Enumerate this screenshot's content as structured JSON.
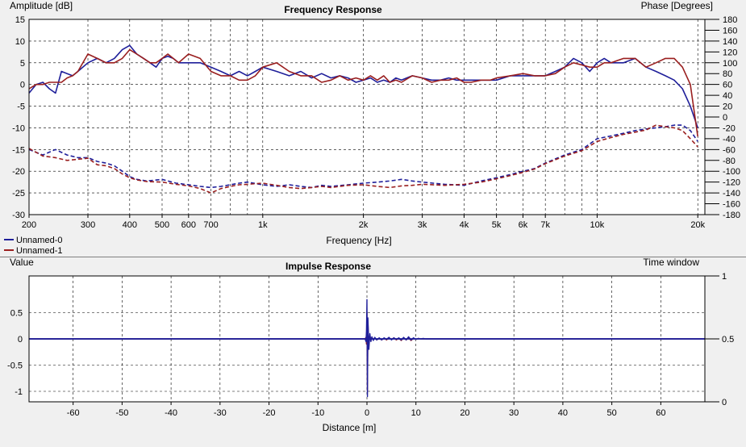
{
  "colors": {
    "series0": "#1f1f9a",
    "series1": "#9a1f1f",
    "grid": "#000000",
    "plot_bg": "#ffffff"
  },
  "chart_data": [
    {
      "type": "line",
      "title": "Frequency Response",
      "xlabel": "Frequency [Hz]",
      "ylabel": "Amplitude [dB]",
      "y2label": "Phase [Degrees]",
      "x_scale": "log",
      "xlim": [
        200,
        21000
      ],
      "ylim": [
        -30,
        15
      ],
      "y2lim": [
        -180,
        180
      ],
      "grid": true,
      "legend_position": "bottom-left",
      "x_ticks": [
        {
          "v": 200,
          "label": "200"
        },
        {
          "v": 300,
          "label": "300"
        },
        {
          "v": 400,
          "label": "400"
        },
        {
          "v": 500,
          "label": "500"
        },
        {
          "v": 600,
          "label": "600"
        },
        {
          "v": 700,
          "label": "700"
        },
        {
          "v": 1000,
          "label": "1k"
        },
        {
          "v": 2000,
          "label": "2k"
        },
        {
          "v": 3000,
          "label": "3k"
        },
        {
          "v": 4000,
          "label": "4k"
        },
        {
          "v": 5000,
          "label": "5k"
        },
        {
          "v": 6000,
          "label": "6k"
        },
        {
          "v": 7000,
          "label": "7k"
        },
        {
          "v": 10000,
          "label": "10k"
        },
        {
          "v": 20000,
          "label": "20k"
        }
      ],
      "y_ticks": [
        15,
        10,
        5,
        0,
        -5,
        -10,
        -15,
        -20,
        -25,
        -30
      ],
      "y2_ticks": [
        180,
        160,
        140,
        120,
        100,
        80,
        60,
        40,
        20,
        0,
        -20,
        -40,
        -60,
        -80,
        -100,
        -120,
        -140,
        -160,
        -180
      ],
      "series": [
        {
          "name": "Unnamed-0",
          "axis": "amplitude",
          "style": "solid",
          "x": [
            200,
            210,
            220,
            230,
            240,
            250,
            260,
            270,
            280,
            300,
            320,
            340,
            360,
            380,
            400,
            420,
            440,
            460,
            480,
            500,
            520,
            540,
            560,
            600,
            650,
            700,
            750,
            800,
            850,
            900,
            950,
            1000,
            1100,
            1200,
            1300,
            1400,
            1500,
            1600,
            1700,
            1800,
            1900,
            2000,
            2100,
            2200,
            2300,
            2400,
            2500,
            2600,
            2800,
            3000,
            3200,
            3400,
            3600,
            3800,
            4000,
            4200,
            4500,
            4800,
            5000,
            5500,
            6000,
            6500,
            7000,
            7500,
            8000,
            8500,
            9000,
            9500,
            10000,
            10500,
            11000,
            12000,
            13000,
            14000,
            15000,
            16000,
            17000,
            18000,
            19000,
            20000
          ],
          "y": [
            -2,
            0,
            0.5,
            -1,
            -2,
            3,
            2.5,
            2,
            3,
            5,
            6,
            5,
            6,
            8,
            9,
            7,
            6,
            5,
            4,
            6,
            6.5,
            6,
            5,
            5,
            5,
            4,
            3,
            2,
            3,
            2,
            3,
            4,
            3,
            2,
            3,
            1.5,
            2.5,
            1.5,
            2,
            1.5,
            0.5,
            1,
            1.5,
            0.5,
            1,
            0.5,
            1.5,
            1,
            2,
            1.5,
            1,
            1,
            1.5,
            1,
            1,
            1,
            1,
            1,
            1,
            2,
            2,
            2,
            2,
            3,
            4,
            6,
            5,
            3,
            5,
            6,
            5,
            5,
            6,
            4,
            3,
            2,
            1,
            -1,
            -5,
            -10
          ]
        },
        {
          "name": "Unnamed-1",
          "axis": "amplitude",
          "style": "solid",
          "x": [
            200,
            210,
            220,
            230,
            240,
            250,
            260,
            270,
            280,
            300,
            320,
            340,
            360,
            380,
            400,
            420,
            440,
            460,
            480,
            500,
            520,
            540,
            560,
            600,
            650,
            700,
            750,
            800,
            850,
            900,
            950,
            1000,
            1100,
            1200,
            1300,
            1400,
            1500,
            1600,
            1700,
            1800,
            1900,
            2000,
            2100,
            2200,
            2300,
            2400,
            2500,
            2600,
            2800,
            3000,
            3200,
            3400,
            3600,
            3800,
            4000,
            4200,
            4500,
            4800,
            5000,
            5500,
            6000,
            6500,
            7000,
            7500,
            8000,
            8500,
            9000,
            9500,
            10000,
            10500,
            11000,
            12000,
            13000,
            14000,
            15000,
            16000,
            17000,
            18000,
            19000,
            20000
          ],
          "y": [
            -1,
            0,
            0,
            0.5,
            0.5,
            0.5,
            1.5,
            2,
            3,
            7,
            6,
            5,
            5,
            6,
            8,
            7,
            6,
            5,
            5,
            6,
            7,
            6,
            5,
            7,
            6,
            3,
            2,
            2,
            1,
            1,
            2,
            4,
            5,
            3,
            2,
            2,
            0.5,
            1,
            2,
            1,
            1.5,
            1,
            2,
            1,
            2,
            0.5,
            1,
            0.5,
            2,
            1.5,
            0.5,
            1,
            1,
            1.5,
            0.5,
            0.5,
            1,
            1,
            1.5,
            2,
            2.5,
            2,
            2,
            2.5,
            4,
            5,
            4.5,
            4,
            4,
            5,
            5,
            6,
            6,
            4,
            5,
            6,
            6,
            4,
            0,
            -12
          ]
        },
        {
          "name": "Unnamed-0",
          "axis": "phase",
          "style": "dashed",
          "x": [
            200,
            220,
            240,
            260,
            280,
            300,
            320,
            340,
            360,
            380,
            400,
            420,
            450,
            500,
            550,
            600,
            650,
            700,
            750,
            800,
            850,
            900,
            1000,
            1100,
            1200,
            1300,
            1400,
            1500,
            1600,
            1800,
            2000,
            2200,
            2400,
            2600,
            2800,
            3000,
            3500,
            4000,
            4500,
            5000,
            5500,
            6000,
            6500,
            7000,
            8000,
            9000,
            10000,
            11000,
            12000,
            13000,
            14000,
            15000,
            16000,
            17000,
            18000,
            19000,
            20000
          ],
          "y": [
            -60,
            -70,
            -60,
            -70,
            -75,
            -75,
            -82,
            -85,
            -90,
            -100,
            -110,
            -115,
            -118,
            -115,
            -122,
            -125,
            -128,
            -130,
            -128,
            -125,
            -122,
            -120,
            -125,
            -128,
            -125,
            -128,
            -130,
            -126,
            -128,
            -125,
            -122,
            -120,
            -118,
            -115,
            -118,
            -120,
            -124,
            -126,
            -118,
            -112,
            -106,
            -100,
            -95,
            -85,
            -70,
            -60,
            -40,
            -35,
            -30,
            -25,
            -22,
            -20,
            -18,
            -15,
            -15,
            -25,
            -45
          ]
        },
        {
          "name": "Unnamed-1",
          "axis": "phase",
          "style": "dashed",
          "x": [
            200,
            220,
            240,
            260,
            280,
            300,
            320,
            340,
            360,
            380,
            400,
            420,
            450,
            500,
            550,
            600,
            650,
            700,
            750,
            800,
            850,
            900,
            1000,
            1100,
            1200,
            1300,
            1400,
            1500,
            1600,
            1800,
            2000,
            2200,
            2400,
            2600,
            2800,
            3000,
            3500,
            4000,
            4500,
            5000,
            5500,
            6000,
            6500,
            7000,
            8000,
            9000,
            10000,
            11000,
            12000,
            13000,
            14000,
            15000,
            16000,
            17000,
            18000,
            19000,
            20000
          ],
          "y": [
            -58,
            -72,
            -75,
            -80,
            -78,
            -76,
            -88,
            -90,
            -95,
            -105,
            -112,
            -116,
            -119,
            -120,
            -124,
            -127,
            -132,
            -140,
            -132,
            -128,
            -125,
            -124,
            -122,
            -126,
            -130,
            -132,
            -130,
            -128,
            -130,
            -126,
            -125,
            -128,
            -130,
            -127,
            -126,
            -124,
            -126,
            -124,
            -120,
            -114,
            -108,
            -102,
            -96,
            -86,
            -72,
            -62,
            -45,
            -38,
            -32,
            -28,
            -24,
            -15,
            -18,
            -20,
            -25,
            -40,
            -55
          ]
        }
      ]
    },
    {
      "type": "line",
      "title": "Impulse Response",
      "xlabel": "Distance [m]",
      "ylabel": "Value",
      "y2label": "Time window",
      "xlim": [
        -69,
        69
      ],
      "ylim": [
        -1.2,
        1.2
      ],
      "y2lim": [
        0,
        1
      ],
      "grid": true,
      "x_ticks": [
        -60,
        -50,
        -40,
        -30,
        -20,
        -10,
        0,
        10,
        20,
        30,
        40,
        50,
        60
      ],
      "y_ticks": [
        0.5,
        0,
        -0.5,
        -1
      ],
      "y2_ticks": [
        1,
        0.5,
        0
      ],
      "series": [
        {
          "name": "Unnamed-0",
          "x": [
            -69,
            -0.4,
            -0.2,
            -0.1,
            0,
            0.1,
            0.2,
            0.4,
            0.6,
            0.8,
            1,
            1.3,
            1.6,
            2,
            2.5,
            3,
            3.5,
            4,
            4.5,
            5,
            5.5,
            6,
            6.5,
            7,
            7.5,
            8,
            8.5,
            9,
            9.5,
            10,
            10.5,
            11,
            11.5,
            12,
            12.5,
            69
          ],
          "y": [
            0,
            0,
            -0.05,
            0.15,
            0.75,
            -1.1,
            0.4,
            -0.2,
            0.1,
            -0.05,
            0.04,
            -0.03,
            0.03,
            -0.02,
            0.02,
            -0.02,
            0.02,
            -0.01,
            0.03,
            -0.02,
            0.02,
            -0.01,
            0.02,
            -0.02,
            0.03,
            -0.02,
            0.04,
            -0.02,
            0.02,
            -0.01,
            0.01,
            0,
            0.01,
            0,
            0,
            0
          ]
        },
        {
          "name": "Unnamed-1",
          "x": [
            -69,
            -0.4,
            -0.2,
            -0.1,
            0,
            0.1,
            0.2,
            0.4,
            0.6,
            0.8,
            1,
            1.3,
            1.6,
            2,
            2.5,
            3,
            3.5,
            4,
            4.5,
            5,
            5.5,
            6,
            6.5,
            7,
            7.5,
            8,
            8.5,
            9,
            9.5,
            10,
            10.5,
            11,
            11.5,
            12,
            12.5,
            69
          ],
          "y": [
            0,
            0,
            0.03,
            -0.1,
            0.5,
            -1.0,
            0.3,
            -0.1,
            0.06,
            -0.03,
            0.03,
            -0.02,
            0.02,
            -0.02,
            0.01,
            -0.02,
            0.01,
            -0.02,
            0.02,
            -0.01,
            0.02,
            -0.02,
            0.01,
            -0.03,
            0.02,
            -0.02,
            0.02,
            -0.03,
            0.01,
            -0.01,
            0.01,
            0,
            0,
            0,
            0,
            0
          ]
        },
        {
          "name": "Time window",
          "axis": "window",
          "x": [
            -69,
            69
          ],
          "y": [
            0.5,
            0.5
          ]
        }
      ]
    }
  ]
}
